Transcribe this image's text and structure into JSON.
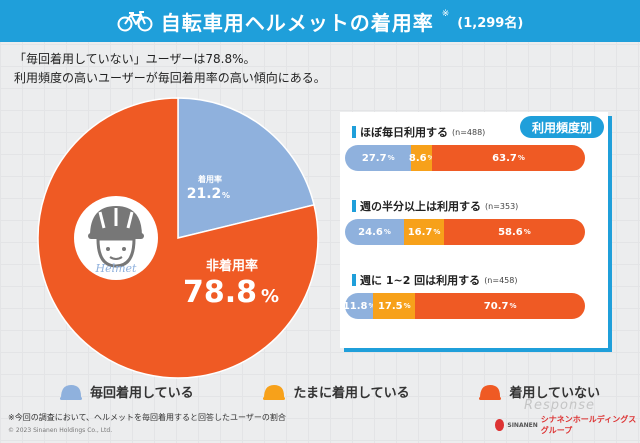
{
  "header": {
    "title": "自転車用ヘルメットの着用率",
    "mark": "※",
    "count": "(1,299名)"
  },
  "subtitle": {
    "line1": "「毎回着用していない」ユーザーは78.8%。",
    "line2": "利用頻度の高いユーザーが毎回着用率の高い傾向にある。"
  },
  "panel": {
    "badge": "利用頻度別"
  },
  "colors": {
    "blue": "#8fb1dd",
    "yellow": "#f7a11a",
    "orange": "#ef5a24",
    "accent": "#1f9fda"
  },
  "chart_data": [
    {
      "type": "pie",
      "title": "自転車用ヘルメットの着用率",
      "labels": [
        "着用率",
        "たまに着用している",
        "非着用率"
      ],
      "values": [
        21.2,
        0,
        78.8
      ],
      "display": {
        "worn_label": "着用率",
        "worn_value": "21.2",
        "unworn_label": "非着用率",
        "unworn_value": "78.8",
        "pct": "%"
      },
      "slices": [
        {
          "name": "着用率",
          "value": 21.2,
          "color": "#8fb1dd"
        },
        {
          "name": "たまに着用している",
          "value": 0.0,
          "color": "#f7a11a"
        },
        {
          "name": "非着用率",
          "value": 78.8,
          "color": "#ef5a24"
        }
      ]
    },
    {
      "type": "bar",
      "orientation": "horizontal-stacked",
      "title": "利用頻度別",
      "categories": [
        "ほぼ毎日利用する",
        "週の半分以上は利用する",
        "週に 1~2 回は利用する"
      ],
      "n": [
        "(n=488)",
        "(n=353)",
        "(n=458)"
      ],
      "series": [
        {
          "name": "毎回着用している",
          "values": [
            27.7,
            24.6,
            11.8
          ]
        },
        {
          "name": "たまに着用している",
          "values": [
            8.6,
            16.7,
            17.5
          ]
        },
        {
          "name": "着用していない",
          "values": [
            63.7,
            58.6,
            70.7
          ]
        }
      ],
      "labels": [
        [
          "27.7",
          "8.6",
          "63.7"
        ],
        [
          "24.6",
          "16.7",
          "58.6"
        ],
        [
          "11.8",
          "17.5",
          "70.7"
        ]
      ],
      "pct": "%",
      "xlim": [
        0,
        100
      ]
    }
  ],
  "legend": [
    {
      "label": "毎回着用している",
      "color": "#8fb1dd"
    },
    {
      "label": "たまに着用している",
      "color": "#f7a11a"
    },
    {
      "label": "着用していない",
      "color": "#ef5a24"
    }
  ],
  "footnote": "※今回の調査において、ヘルメットを毎回着用すると回答したユーザーの割合",
  "copyright": "© 2023 Sinanen Holdings Co., Ltd.",
  "logo_text": "シナネンホールディングスグループ",
  "logo_sub": "SINANEN",
  "watermark": "Response",
  "helmet_text": "Helmet"
}
